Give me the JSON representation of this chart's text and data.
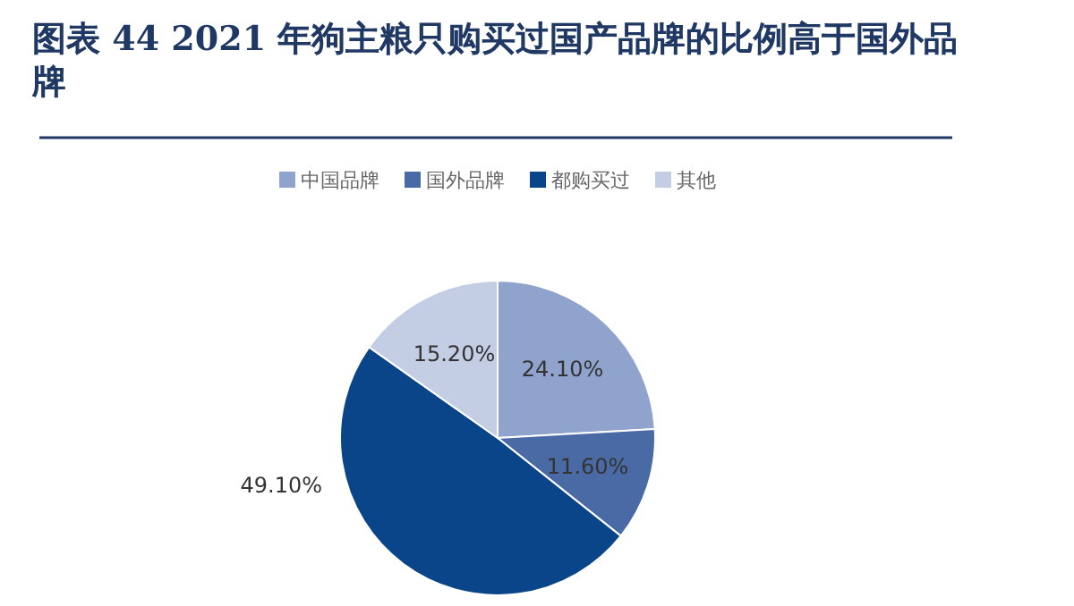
{
  "chart_data": {
    "type": "pie",
    "title": "图表 44  2021 年狗主粮只购买过国产品牌的比例高于国外品牌",
    "categories": [
      "中国品牌",
      "国外品牌",
      "都购买过",
      "其他"
    ],
    "values": [
      24.1,
      11.6,
      49.1,
      15.2
    ],
    "colors": [
      "#8fa3cc",
      "#4a6aa6",
      "#0a4489",
      "#c3cde3"
    ],
    "value_labels": [
      "24.10%",
      "11.60%",
      "49.10%",
      "15.20%"
    ],
    "legend": "top"
  }
}
